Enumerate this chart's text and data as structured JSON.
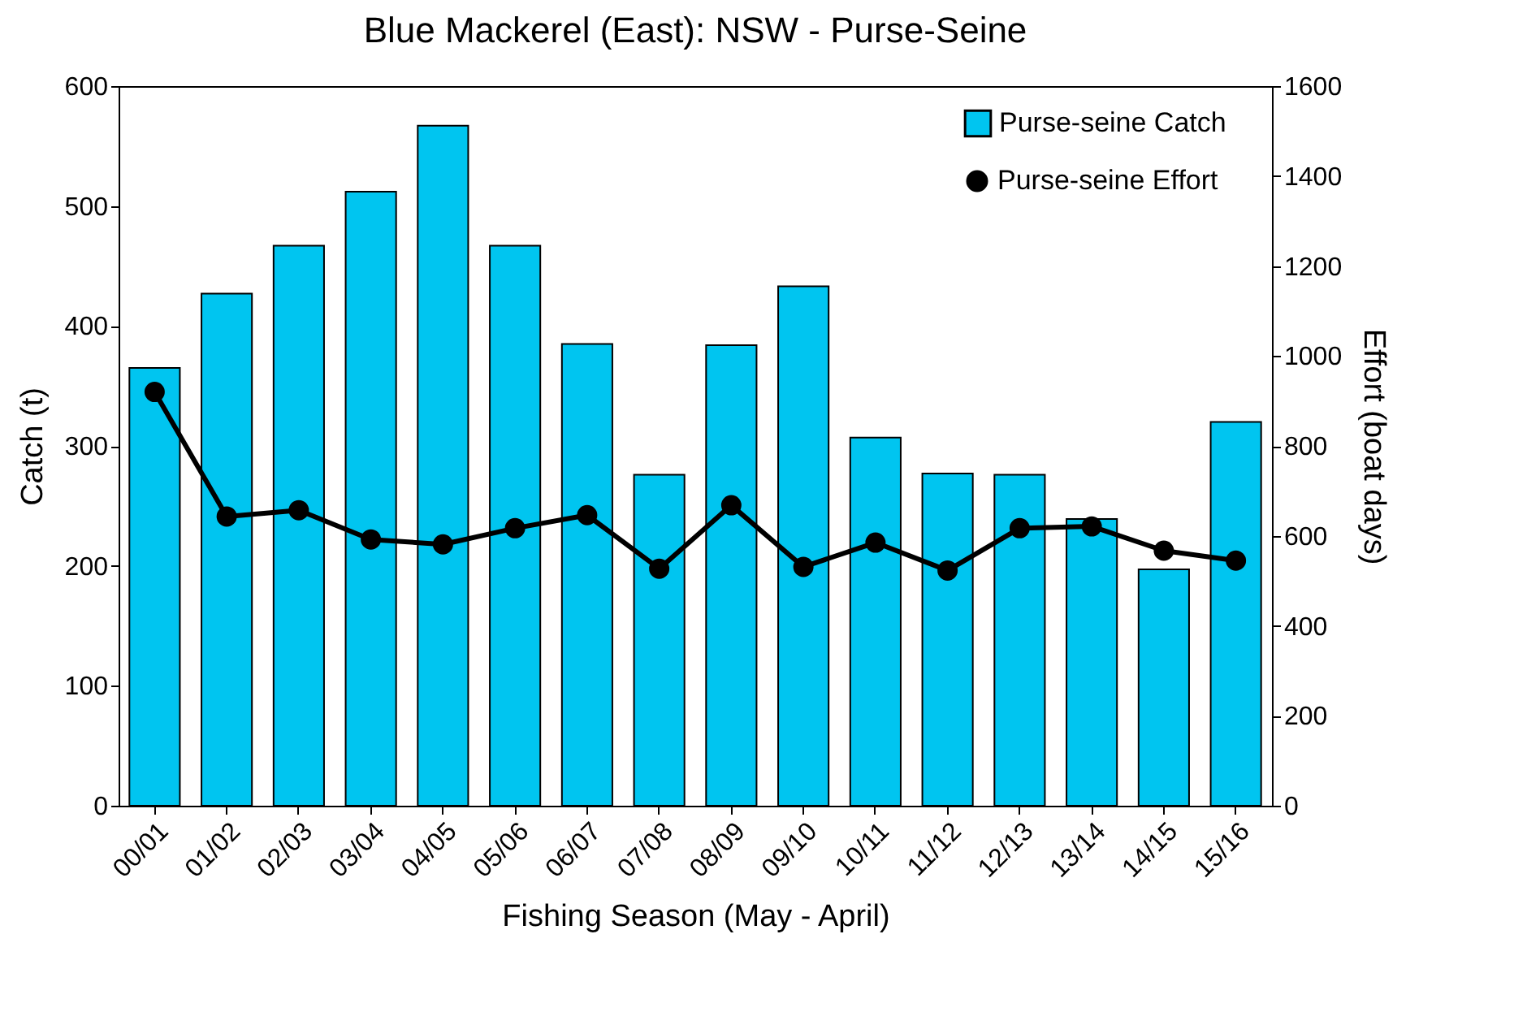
{
  "chart_data": {
    "type": "bar",
    "title": "Blue Mackerel (East): NSW - Purse-Seine",
    "xlabel": "Fishing Season (May - April)",
    "ylabel": "Catch (t)",
    "y2label": "Effort (boat days)",
    "categories": [
      "00/01",
      "01/02",
      "02/03",
      "03/04",
      "04/05",
      "05/06",
      "06/07",
      "07/08",
      "08/09",
      "09/10",
      "10/11",
      "11/12",
      "12/13",
      "13/14",
      "14/15",
      "15/16"
    ],
    "series": [
      {
        "name": "Purse-seine Catch",
        "color": "#00c5f0",
        "values": [
          365,
          427,
          467,
          512,
          567,
          467,
          385,
          276,
          384,
          433,
          307,
          277,
          276,
          239,
          197,
          320
        ]
      },
      {
        "name": "Purse-seine Effort",
        "type": "line",
        "axis": "y2",
        "color": "#000000",
        "marker": "circle",
        "values": [
          920,
          643,
          657,
          592,
          581,
          617,
          646,
          527,
          668,
          531,
          585,
          523,
          617,
          621,
          567,
          545
        ]
      }
    ],
    "ylim": [
      0,
      600
    ],
    "yticks": [
      0,
      100,
      200,
      300,
      400,
      500,
      600
    ],
    "y2lim": [
      0,
      1600
    ],
    "y2ticks": [
      0,
      200,
      400,
      600,
      800,
      1000,
      1200,
      1400,
      1600
    ],
    "grid": false,
    "legend": "top right"
  }
}
